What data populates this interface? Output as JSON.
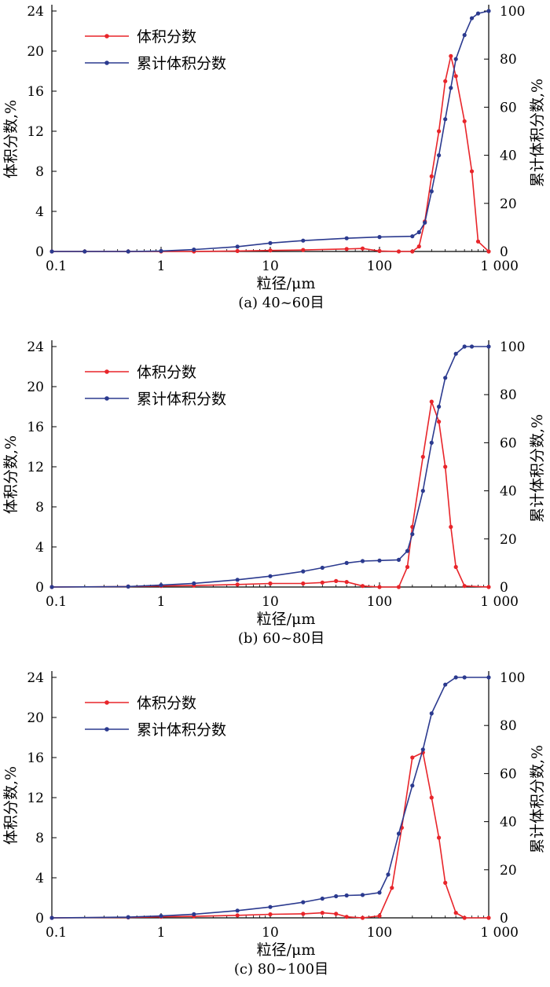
{
  "figure": {
    "background": "#ffffff"
  },
  "chart_data": [
    {
      "type": "line",
      "caption": "(a) 40~60目",
      "xlabel": "粒径/μm",
      "ylabel_left": "体积分数,%",
      "ylabel_right": "累计体积分数,%",
      "x_scale": "log",
      "xlim": [
        0.1,
        1000
      ],
      "x_ticks": [
        0.1,
        1,
        10,
        100,
        1000
      ],
      "x_tick_labels": [
        "0.1",
        "1",
        "10",
        "100",
        "1 000"
      ],
      "ylim_left": [
        0,
        24
      ],
      "y_ticks_left": [
        0,
        4,
        8,
        12,
        16,
        20,
        24
      ],
      "ylim_right": [
        0,
        100
      ],
      "y_ticks_right": [
        0,
        20,
        40,
        60,
        80,
        100
      ],
      "legend": "top-left",
      "grid": false,
      "series": [
        {
          "name": "体积分数",
          "axis": "left",
          "color": "#e8252a",
          "x": [
            0.1,
            0.2,
            0.5,
            1,
            2,
            5,
            10,
            20,
            50,
            70,
            100,
            150,
            200,
            230,
            260,
            300,
            350,
            400,
            450,
            500,
            600,
            700,
            800,
            1000
          ],
          "y": [
            0,
            0,
            0,
            0,
            0,
            0.05,
            0.1,
            0.15,
            0.25,
            0.3,
            0.05,
            0,
            0,
            0.5,
            3,
            7.5,
            12,
            17,
            19.5,
            17.5,
            13,
            8,
            1,
            0
          ]
        },
        {
          "name": "累计体积分数",
          "axis": "right",
          "color": "#2b3a8f",
          "x": [
            0.1,
            0.2,
            0.5,
            1,
            2,
            5,
            10,
            20,
            50,
            100,
            200,
            230,
            260,
            300,
            350,
            400,
            450,
            500,
            600,
            700,
            800,
            1000
          ],
          "y": [
            0,
            0,
            0,
            0.2,
            0.8,
            2,
            3.5,
            4.5,
            5.5,
            6,
            6.3,
            8,
            12,
            25,
            40,
            55,
            68,
            80,
            90,
            97,
            99,
            100
          ]
        }
      ]
    },
    {
      "type": "line",
      "caption": "(b) 60~80目",
      "xlabel": "粒径/μm",
      "ylabel_left": "体积分数,%",
      "ylabel_right": "累计体积分数,%",
      "x_scale": "log",
      "xlim": [
        0.1,
        1000
      ],
      "x_ticks": [
        0.1,
        1,
        10,
        100,
        1000
      ],
      "x_tick_labels": [
        "0.1",
        "1",
        "10",
        "100",
        "1 000"
      ],
      "ylim_left": [
        0,
        24
      ],
      "y_ticks_left": [
        0,
        4,
        8,
        12,
        16,
        20,
        24
      ],
      "ylim_right": [
        0,
        100
      ],
      "y_ticks_right": [
        0,
        20,
        40,
        60,
        80,
        100
      ],
      "legend": "top-left",
      "grid": false,
      "series": [
        {
          "name": "体积分数",
          "axis": "left",
          "color": "#e8252a",
          "x": [
            0.1,
            0.5,
            1,
            2,
            5,
            10,
            20,
            30,
            40,
            50,
            70,
            100,
            150,
            180,
            200,
            250,
            300,
            350,
            400,
            450,
            500,
            600,
            1000
          ],
          "y": [
            0,
            0.05,
            0.1,
            0.15,
            0.25,
            0.35,
            0.35,
            0.45,
            0.6,
            0.5,
            0.1,
            0,
            0,
            2,
            6,
            13,
            18.5,
            16.5,
            12,
            6,
            2,
            0.1,
            0
          ]
        },
        {
          "name": "累计体积分数",
          "axis": "right",
          "color": "#2b3a8f",
          "x": [
            0.1,
            0.5,
            1,
            2,
            5,
            10,
            20,
            30,
            50,
            70,
            100,
            150,
            180,
            200,
            250,
            300,
            350,
            400,
            500,
            600,
            700,
            1000
          ],
          "y": [
            0,
            0.2,
            0.8,
            1.5,
            3,
            4.5,
            6.5,
            8,
            10,
            10.8,
            11,
            11.3,
            15,
            22,
            40,
            60,
            75,
            87,
            97,
            100,
            100,
            100
          ]
        }
      ]
    },
    {
      "type": "line",
      "caption": "(c) 80~100目",
      "xlabel": "粒径/μm",
      "ylabel_left": "体积分数,%",
      "ylabel_right": "累计体积分数,%",
      "x_scale": "log",
      "xlim": [
        0.1,
        1000
      ],
      "x_ticks": [
        0.1,
        1,
        10,
        100,
        1000
      ],
      "x_tick_labels": [
        "0.1",
        "1",
        "10",
        "100",
        "1 000"
      ],
      "ylim_left": [
        0,
        24
      ],
      "y_ticks_left": [
        0,
        4,
        8,
        12,
        16,
        20,
        24
      ],
      "ylim_right": [
        0,
        100
      ],
      "y_ticks_right": [
        0,
        20,
        40,
        60,
        80,
        100
      ],
      "legend": "top-left",
      "grid": false,
      "series": [
        {
          "name": "体积分数",
          "axis": "left",
          "color": "#e8252a",
          "x": [
            0.1,
            0.5,
            1,
            2,
            5,
            10,
            20,
            30,
            40,
            50,
            70,
            100,
            130,
            160,
            200,
            250,
            300,
            350,
            400,
            500,
            600,
            1000
          ],
          "y": [
            0,
            0.05,
            0.1,
            0.15,
            0.25,
            0.35,
            0.4,
            0.5,
            0.4,
            0.1,
            0,
            0.2,
            3,
            9,
            16,
            16.5,
            12,
            8,
            3.5,
            0.5,
            0,
            0
          ]
        },
        {
          "name": "累计体积分数",
          "axis": "right",
          "color": "#2b3a8f",
          "x": [
            0.1,
            0.5,
            1,
            2,
            5,
            10,
            20,
            30,
            40,
            50,
            70,
            100,
            120,
            150,
            200,
            250,
            300,
            400,
            500,
            600,
            1000
          ],
          "y": [
            0,
            0.3,
            0.8,
            1.5,
            3,
            4.5,
            6.5,
            8,
            9,
            9.3,
            9.5,
            10.5,
            18,
            35,
            55,
            70,
            85,
            97,
            100,
            100,
            100
          ]
        }
      ]
    }
  ]
}
